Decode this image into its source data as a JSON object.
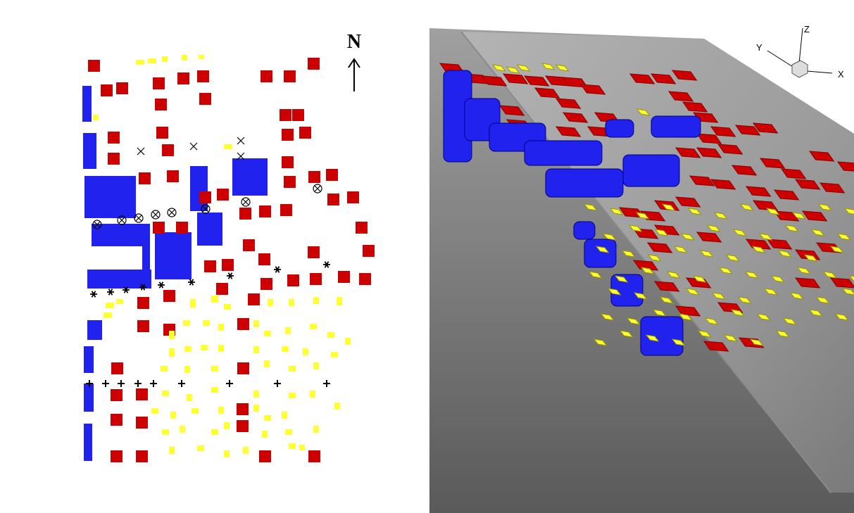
{
  "compass": {
    "label": "N"
  },
  "axes": {
    "x": "X",
    "y": "Y",
    "z": "Z"
  }
}
